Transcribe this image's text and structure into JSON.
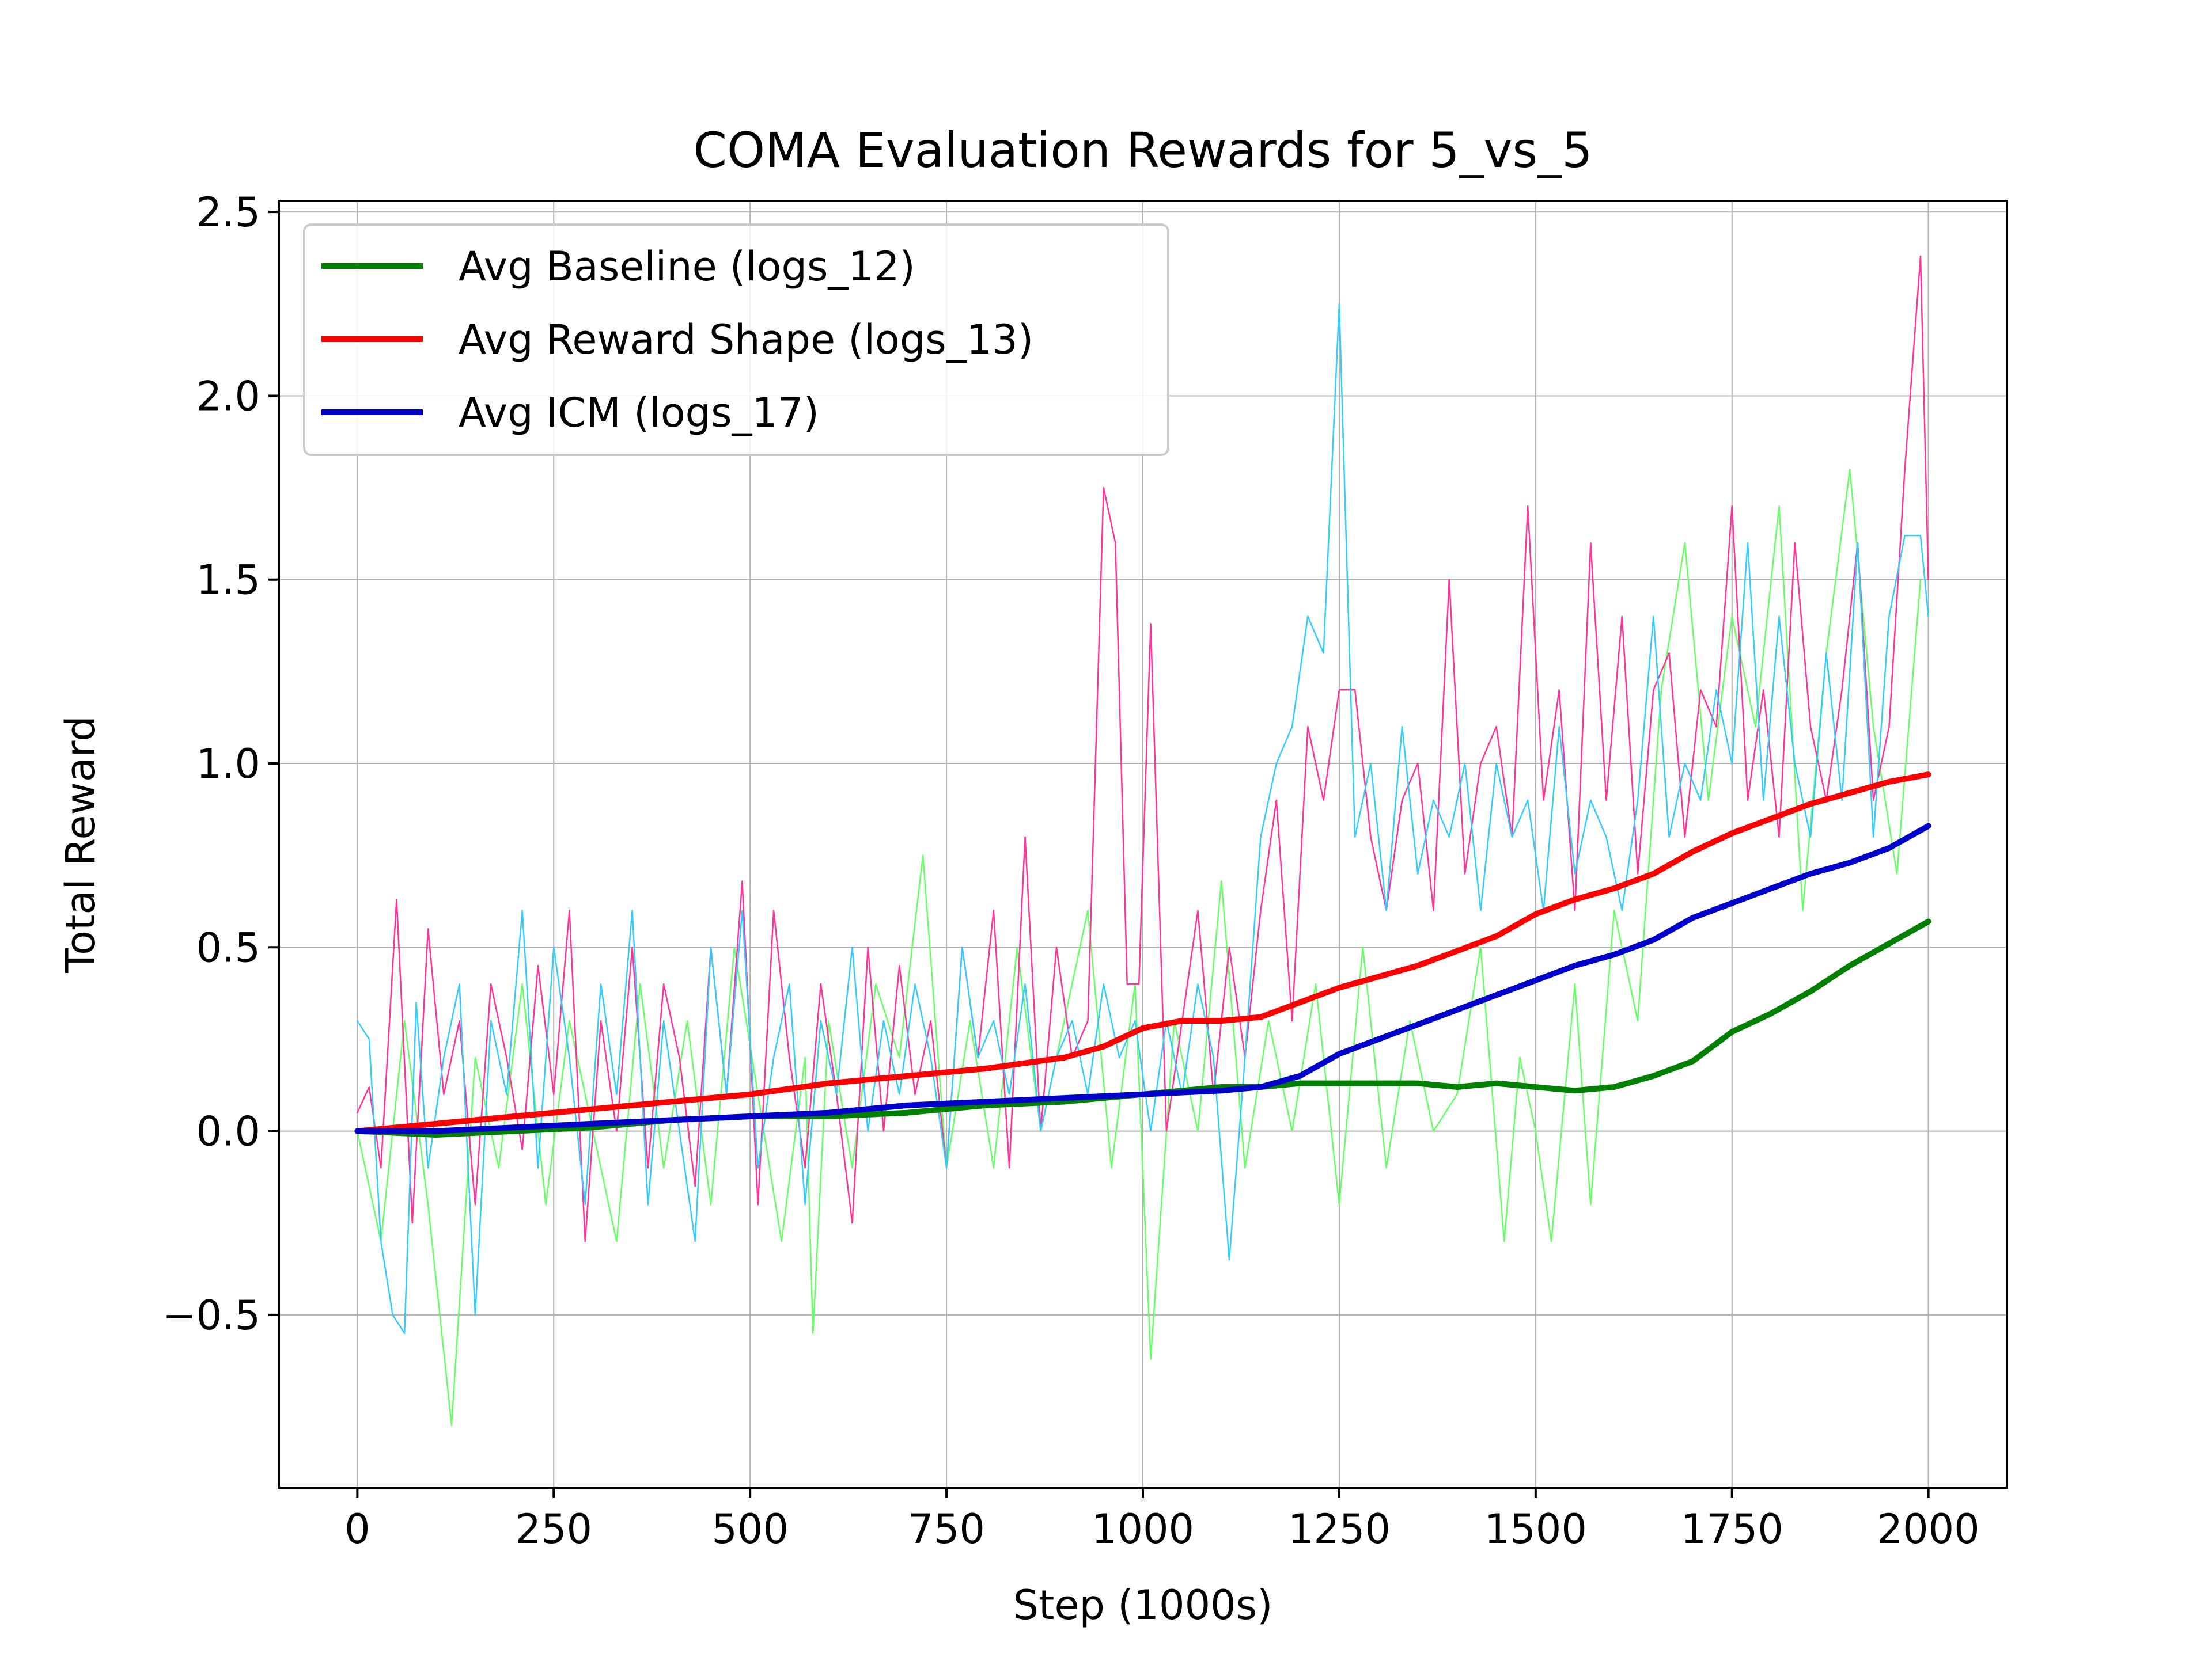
{
  "chart_data": {
    "type": "line",
    "title": "COMA Evaluation Rewards for 5_vs_5",
    "xlabel": "Step (1000s)",
    "ylabel": "Total Reward",
    "xlim": [
      -100,
      2100
    ],
    "ylim": [
      -0.97,
      2.53
    ],
    "xticks": [
      0,
      250,
      500,
      750,
      1000,
      1250,
      1500,
      1750,
      2000
    ],
    "yticks": [
      -0.5,
      0.0,
      0.5,
      1.0,
      1.5,
      2.0,
      2.5
    ],
    "ytick_labels": [
      "−0.5",
      "0.0",
      "0.5",
      "1.0",
      "1.5",
      "2.0",
      "2.5"
    ],
    "grid": true,
    "legend": {
      "position": "top-left",
      "entries": [
        "Avg Baseline (logs_12)",
        "Avg Reward Shape (logs_13)",
        "Avg ICM (logs_17)"
      ]
    },
    "series": [
      {
        "name": "Avg Baseline (logs_12)",
        "color": "#008000",
        "style": "bold",
        "x": [
          0,
          100,
          200,
          300,
          400,
          500,
          600,
          700,
          800,
          900,
          1000,
          1100,
          1150,
          1200,
          1250,
          1300,
          1350,
          1400,
          1450,
          1500,
          1550,
          1600,
          1650,
          1700,
          1750,
          1800,
          1850,
          1900,
          1950,
          2000
        ],
        "y": [
          0.0,
          -0.01,
          0.0,
          0.01,
          0.03,
          0.04,
          0.04,
          0.05,
          0.07,
          0.08,
          0.1,
          0.12,
          0.12,
          0.13,
          0.13,
          0.13,
          0.13,
          0.12,
          0.13,
          0.12,
          0.11,
          0.12,
          0.15,
          0.19,
          0.27,
          0.32,
          0.38,
          0.45,
          0.51,
          0.57
        ]
      },
      {
        "name": "Avg Reward Shape (logs_13)",
        "color": "#ff0000",
        "style": "bold",
        "x": [
          0,
          100,
          200,
          300,
          400,
          500,
          600,
          700,
          800,
          900,
          950,
          1000,
          1050,
          1100,
          1150,
          1200,
          1250,
          1300,
          1350,
          1400,
          1450,
          1500,
          1550,
          1600,
          1650,
          1700,
          1750,
          1800,
          1850,
          1900,
          1950,
          2000
        ],
        "y": [
          0.0,
          0.02,
          0.04,
          0.06,
          0.08,
          0.1,
          0.13,
          0.15,
          0.17,
          0.2,
          0.23,
          0.28,
          0.3,
          0.3,
          0.31,
          0.35,
          0.39,
          0.42,
          0.45,
          0.49,
          0.53,
          0.59,
          0.63,
          0.66,
          0.7,
          0.76,
          0.81,
          0.85,
          0.89,
          0.92,
          0.95,
          0.97
        ]
      },
      {
        "name": "Avg ICM (logs_17)",
        "color": "#0000cc",
        "style": "bold",
        "x": [
          0,
          100,
          200,
          300,
          400,
          500,
          600,
          700,
          800,
          900,
          1000,
          1100,
          1150,
          1200,
          1250,
          1300,
          1350,
          1400,
          1450,
          1500,
          1550,
          1600,
          1650,
          1700,
          1750,
          1800,
          1850,
          1900,
          1950,
          2000
        ],
        "y": [
          0.0,
          0.0,
          0.01,
          0.02,
          0.03,
          0.04,
          0.05,
          0.07,
          0.08,
          0.09,
          0.1,
          0.11,
          0.12,
          0.15,
          0.21,
          0.25,
          0.29,
          0.33,
          0.37,
          0.41,
          0.45,
          0.48,
          0.52,
          0.58,
          0.62,
          0.66,
          0.7,
          0.73,
          0.77,
          0.83
        ]
      },
      {
        "color": "#66ff66",
        "style": "thin",
        "x": [
          0,
          30,
          60,
          90,
          120,
          150,
          180,
          210,
          240,
          270,
          300,
          330,
          360,
          390,
          420,
          450,
          480,
          510,
          540,
          570,
          580,
          600,
          630,
          660,
          690,
          720,
          750,
          780,
          810,
          840,
          870,
          900,
          930,
          960,
          990,
          1010,
          1040,
          1070,
          1100,
          1130,
          1160,
          1190,
          1220,
          1250,
          1280,
          1310,
          1340,
          1370,
          1400,
          1430,
          1460,
          1480,
          1500,
          1520,
          1550,
          1570,
          1600,
          1630,
          1660,
          1690,
          1720,
          1750,
          1780,
          1810,
          1840,
          1870,
          1900,
          1930,
          1960,
          1990
        ],
        "y": [
          0.0,
          -0.3,
          0.3,
          -0.2,
          -0.8,
          0.2,
          -0.1,
          0.4,
          -0.2,
          0.3,
          0.0,
          -0.3,
          0.4,
          -0.1,
          0.3,
          -0.2,
          0.5,
          0.1,
          -0.3,
          0.2,
          -0.55,
          0.3,
          -0.1,
          0.4,
          0.2,
          0.75,
          -0.1,
          0.3,
          -0.1,
          0.5,
          0.0,
          0.3,
          0.6,
          -0.1,
          0.4,
          -0.62,
          0.3,
          0.0,
          0.68,
          -0.1,
          0.3,
          0.0,
          0.4,
          -0.2,
          0.5,
          -0.1,
          0.3,
          0.0,
          0.1,
          0.5,
          -0.3,
          0.2,
          0.0,
          -0.3,
          0.4,
          -0.2,
          0.6,
          0.3,
          1.2,
          1.6,
          0.9,
          1.4,
          1.1,
          1.7,
          0.6,
          1.3,
          1.8,
          1.1,
          0.7,
          1.5
        ]
      },
      {
        "color": "#ff3399",
        "style": "thin",
        "x": [
          0,
          15,
          30,
          50,
          70,
          90,
          110,
          130,
          150,
          170,
          190,
          210,
          230,
          250,
          270,
          290,
          310,
          330,
          350,
          370,
          390,
          410,
          430,
          450,
          470,
          490,
          510,
          530,
          550,
          570,
          590,
          610,
          630,
          650,
          670,
          690,
          710,
          730,
          750,
          770,
          790,
          810,
          830,
          850,
          870,
          890,
          910,
          930,
          950,
          965,
          980,
          995,
          1010,
          1030,
          1050,
          1070,
          1090,
          1110,
          1130,
          1150,
          1170,
          1190,
          1210,
          1230,
          1250,
          1270,
          1290,
          1310,
          1330,
          1350,
          1370,
          1390,
          1410,
          1430,
          1450,
          1470,
          1490,
          1510,
          1530,
          1550,
          1570,
          1590,
          1610,
          1630,
          1650,
          1670,
          1690,
          1710,
          1730,
          1750,
          1770,
          1790,
          1810,
          1830,
          1850,
          1870,
          1890,
          1910,
          1930,
          1950,
          1970,
          1990,
          2000
        ],
        "y": [
          0.05,
          0.12,
          -0.1,
          0.63,
          -0.25,
          0.55,
          0.1,
          0.3,
          -0.2,
          0.4,
          0.2,
          -0.05,
          0.45,
          0.1,
          0.6,
          -0.3,
          0.3,
          0.0,
          0.5,
          -0.1,
          0.4,
          0.2,
          -0.15,
          0.5,
          0.1,
          0.68,
          -0.2,
          0.6,
          0.2,
          -0.1,
          0.4,
          0.1,
          -0.25,
          0.5,
          0.0,
          0.45,
          0.1,
          0.3,
          -0.1,
          0.5,
          0.2,
          0.6,
          -0.1,
          0.8,
          0.0,
          0.5,
          0.2,
          0.3,
          1.75,
          1.6,
          0.4,
          0.4,
          1.38,
          0.0,
          0.3,
          0.6,
          0.1,
          0.5,
          0.2,
          0.6,
          0.9,
          0.3,
          1.1,
          0.9,
          1.2,
          1.2,
          0.8,
          0.6,
          0.9,
          1.0,
          0.6,
          1.5,
          0.7,
          1.0,
          1.1,
          0.8,
          1.7,
          0.9,
          1.2,
          0.6,
          1.6,
          0.9,
          1.4,
          0.7,
          1.2,
          1.3,
          0.8,
          1.2,
          1.1,
          1.7,
          0.9,
          1.2,
          0.8,
          1.6,
          1.1,
          0.9,
          1.2,
          1.6,
          0.9,
          1.1,
          1.8,
          2.38,
          1.5
        ]
      },
      {
        "color": "#33ccff",
        "style": "thin",
        "x": [
          0,
          15,
          30,
          45,
          60,
          75,
          90,
          110,
          130,
          150,
          170,
          190,
          210,
          230,
          250,
          270,
          290,
          310,
          330,
          350,
          370,
          390,
          410,
          430,
          450,
          470,
          490,
          510,
          530,
          550,
          570,
          590,
          610,
          630,
          650,
          670,
          690,
          710,
          730,
          750,
          770,
          790,
          810,
          830,
          850,
          870,
          890,
          910,
          930,
          950,
          970,
          990,
          1010,
          1030,
          1050,
          1070,
          1090,
          1110,
          1130,
          1150,
          1170,
          1190,
          1210,
          1230,
          1250,
          1270,
          1290,
          1310,
          1330,
          1350,
          1370,
          1390,
          1410,
          1430,
          1450,
          1470,
          1490,
          1510,
          1530,
          1550,
          1570,
          1590,
          1610,
          1630,
          1650,
          1670,
          1690,
          1710,
          1730,
          1750,
          1770,
          1790,
          1810,
          1830,
          1850,
          1870,
          1890,
          1910,
          1930,
          1950,
          1970,
          1990,
          2000
        ],
        "y": [
          0.3,
          0.25,
          -0.3,
          -0.5,
          -0.55,
          0.35,
          -0.1,
          0.2,
          0.4,
          -0.5,
          0.3,
          0.1,
          0.6,
          -0.1,
          0.5,
          0.2,
          -0.2,
          0.4,
          0.1,
          0.6,
          -0.2,
          0.3,
          0.0,
          -0.3,
          0.5,
          0.1,
          0.6,
          -0.1,
          0.2,
          0.4,
          -0.2,
          0.3,
          0.1,
          0.5,
          0.0,
          0.3,
          0.1,
          0.4,
          0.2,
          -0.1,
          0.5,
          0.2,
          0.3,
          0.1,
          0.4,
          0.0,
          0.2,
          0.3,
          0.1,
          0.4,
          0.2,
          0.3,
          0.0,
          0.3,
          0.1,
          0.4,
          0.2,
          -0.35,
          0.2,
          0.8,
          1.0,
          1.1,
          1.4,
          1.3,
          2.25,
          0.8,
          1.0,
          0.6,
          1.1,
          0.7,
          0.9,
          0.8,
          1.0,
          0.6,
          1.0,
          0.8,
          0.9,
          0.6,
          1.1,
          0.7,
          0.9,
          0.8,
          0.6,
          0.9,
          1.4,
          0.8,
          1.0,
          0.9,
          1.2,
          1.0,
          1.6,
          0.9,
          1.4,
          1.0,
          0.8,
          1.3,
          0.9,
          1.6,
          0.8,
          1.4,
          1.62,
          1.62,
          1.4
        ]
      }
    ]
  }
}
